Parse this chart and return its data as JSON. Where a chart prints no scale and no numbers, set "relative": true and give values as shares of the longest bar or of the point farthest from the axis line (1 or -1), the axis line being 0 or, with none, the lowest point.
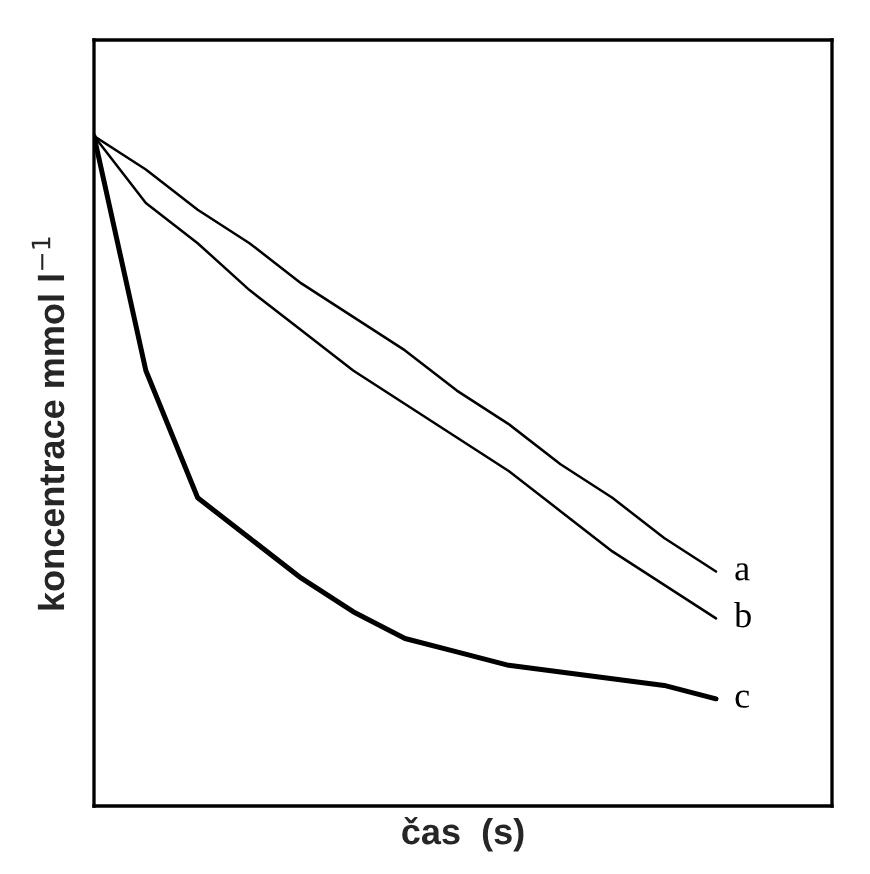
{
  "chart_data": {
    "type": "line",
    "relative": true,
    "xlabel": "čas  (s)",
    "ylabel": "koncentrace mmol l$^{−1}$",
    "tick_labels": false,
    "grid": false,
    "legend": false,
    "marker": "none",
    "line_style": "solid",
    "categories": [
      null,
      null,
      null,
      null,
      null,
      null,
      null,
      null,
      null,
      null,
      null,
      null,
      null
    ],
    "series": [
      {
        "name": "a",
        "color": "#000000",
        "values": [
          1.0,
          0.95,
          0.89,
          0.84,
          0.78,
          0.73,
          0.68,
          0.62,
          0.57,
          0.51,
          0.46,
          0.4,
          0.35
        ]
      },
      {
        "name": "b",
        "color": "#000000",
        "values": [
          1.0,
          0.9,
          0.84,
          0.77,
          0.71,
          0.65,
          0.6,
          0.55,
          0.5,
          0.44,
          0.38,
          0.33,
          0.28
        ]
      },
      {
        "name": "c",
        "color": "#000000",
        "values": [
          1.0,
          0.65,
          0.46,
          0.4,
          0.34,
          0.29,
          0.25,
          0.23,
          0.21,
          0.2,
          0.19,
          0.18,
          0.16
        ]
      }
    ]
  }
}
